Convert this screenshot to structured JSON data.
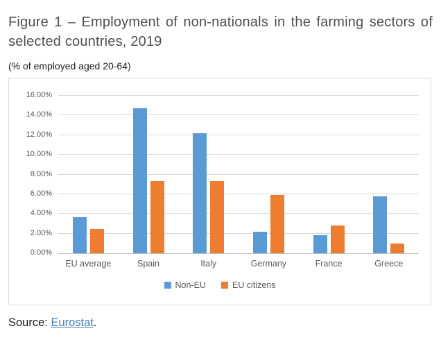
{
  "header": {
    "title": "Figure 1 – Employment of non-nationals in the farming sectors of selected countries, 2019",
    "subtitle": "(% of employed aged 20-64)"
  },
  "chart_data": {
    "type": "bar",
    "title": "Figure 1 – Employment of non-nationals in the farming sectors of selected countries, 2019",
    "subtitle": "(% of employed aged 20-64)",
    "categories": [
      "EU average",
      "Spain",
      "Italy",
      "Germany",
      "France",
      "Greece"
    ],
    "series": [
      {
        "name": "Non-EU",
        "color": "#5B9BD5",
        "values": [
          3.7,
          14.7,
          12.2,
          2.2,
          1.8,
          5.8
        ]
      },
      {
        "name": "EU citizens",
        "color": "#ED7D31",
        "values": [
          2.5,
          7.3,
          7.3,
          5.9,
          2.8,
          1.0
        ]
      }
    ],
    "xlabel": "",
    "ylabel": "% of employed aged 20-64",
    "ylim": [
      0,
      16
    ],
    "ytick_values": [
      0,
      2,
      4,
      6,
      8,
      10,
      12,
      14,
      16
    ],
    "ytick_labels": [
      "0.00%",
      "2.00%",
      "4.00%",
      "6.00%",
      "8.00%",
      "10.00%",
      "12.00%",
      "14.00%",
      "16.00%"
    ],
    "grid": true,
    "legend_position": "bottom"
  },
  "colors": {
    "non_eu_blue": "#5B9BD5",
    "eu_citizens_orange": "#ED7D31",
    "gridline": "#d9d9d9",
    "axis_text": "#595959",
    "title_text": "#4f4f4f",
    "link_blue": "#3E7EC1"
  },
  "source": {
    "prefix": "Source: ",
    "link_text": "Eurostat",
    "suffix": "."
  }
}
